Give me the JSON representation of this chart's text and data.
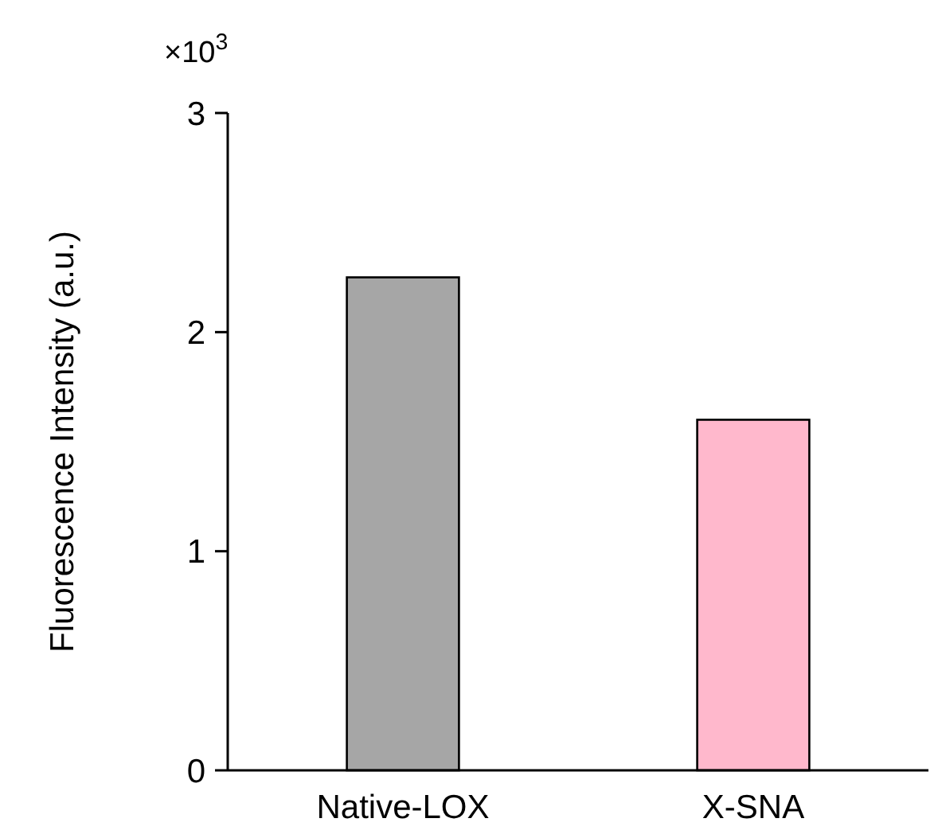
{
  "chart_data": {
    "type": "bar",
    "ylabel": "Fluorescence Intensity (a.u.)",
    "categories": [
      "Native-LOX",
      "X-SNA"
    ],
    "values": [
      2.25,
      1.6
    ],
    "colors": [
      "#a6a6a6",
      "#ffb8cc"
    ],
    "ylim": [
      0,
      3
    ],
    "yticks": [
      0,
      1,
      2,
      3
    ],
    "annotations": [
      "×10$^{3}$"
    ],
    "grid": false
  }
}
